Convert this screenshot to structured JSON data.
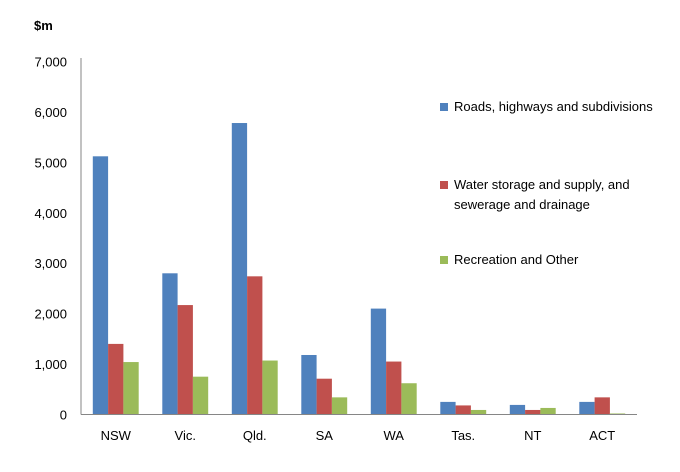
{
  "chart_data": {
    "type": "bar",
    "ylabel": "$m",
    "xlabel": "",
    "ylim": [
      0,
      7000
    ],
    "yticks": [
      "0",
      "1,000",
      "2,000",
      "3,000",
      "4,000",
      "5,000",
      "6,000",
      "7,000"
    ],
    "grid": false,
    "legend_position": "right",
    "categories": [
      "NSW",
      "Vic.",
      "Qld.",
      "SA",
      "WA",
      "Tas.",
      "NT",
      "ACT"
    ],
    "series": [
      {
        "name": "Roads, highways and subdivisions",
        "color": "#4f81bd",
        "values": [
          5120,
          2800,
          5780,
          1180,
          2100,
          250,
          190,
          250
        ]
      },
      {
        "name": "Water storage and supply, and sewerage and drainage",
        "color": "#c0504d",
        "values": [
          1400,
          2170,
          2740,
          710,
          1050,
          180,
          90,
          340
        ]
      },
      {
        "name": "Recreation and Other",
        "color": "#9bbb59",
        "values": [
          1040,
          750,
          1070,
          340,
          620,
          90,
          130,
          20
        ]
      }
    ]
  }
}
